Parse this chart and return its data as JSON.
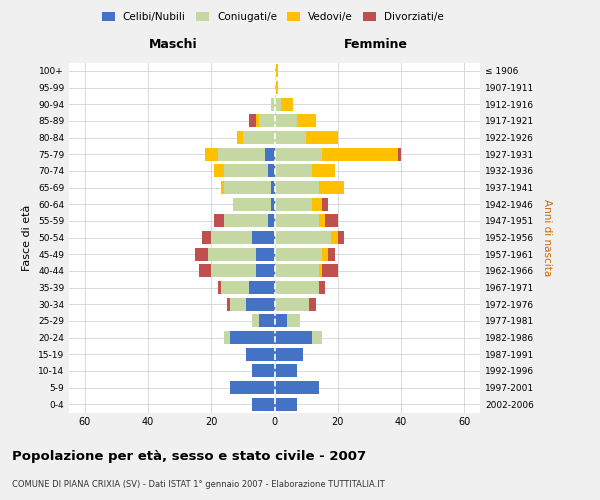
{
  "age_groups": [
    "0-4",
    "5-9",
    "10-14",
    "15-19",
    "20-24",
    "25-29",
    "30-34",
    "35-39",
    "40-44",
    "45-49",
    "50-54",
    "55-59",
    "60-64",
    "65-69",
    "70-74",
    "75-79",
    "80-84",
    "85-89",
    "90-94",
    "95-99",
    "100+"
  ],
  "birth_years": [
    "2002-2006",
    "1997-2001",
    "1992-1996",
    "1987-1991",
    "1982-1986",
    "1977-1981",
    "1972-1976",
    "1967-1971",
    "1962-1966",
    "1957-1961",
    "1952-1956",
    "1947-1951",
    "1942-1946",
    "1937-1941",
    "1932-1936",
    "1927-1931",
    "1922-1926",
    "1917-1921",
    "1912-1916",
    "1907-1911",
    "≤ 1906"
  ],
  "male": {
    "celibi": [
      7,
      14,
      7,
      9,
      14,
      5,
      9,
      8,
      6,
      6,
      7,
      2,
      1,
      1,
      2,
      3,
      0,
      0,
      0,
      0,
      0
    ],
    "coniugati": [
      0,
      0,
      0,
      0,
      2,
      2,
      5,
      9,
      14,
      15,
      13,
      14,
      12,
      15,
      14,
      15,
      10,
      5,
      1,
      0,
      0
    ],
    "vedovi": [
      0,
      0,
      0,
      0,
      0,
      0,
      0,
      0,
      0,
      0,
      0,
      0,
      0,
      1,
      3,
      4,
      2,
      1,
      0,
      0,
      0
    ],
    "divorziati": [
      0,
      0,
      0,
      0,
      0,
      0,
      1,
      1,
      4,
      4,
      3,
      3,
      0,
      0,
      0,
      0,
      0,
      2,
      0,
      0,
      0
    ]
  },
  "female": {
    "nubili": [
      7,
      14,
      7,
      9,
      12,
      4,
      0,
      0,
      0,
      0,
      0,
      0,
      0,
      0,
      0,
      0,
      0,
      0,
      0,
      0,
      0
    ],
    "coniugate": [
      0,
      0,
      0,
      0,
      3,
      4,
      11,
      14,
      14,
      15,
      18,
      14,
      12,
      14,
      12,
      15,
      10,
      7,
      2,
      0,
      0
    ],
    "vedove": [
      0,
      0,
      0,
      0,
      0,
      0,
      0,
      0,
      1,
      2,
      2,
      2,
      3,
      8,
      7,
      24,
      10,
      6,
      4,
      1,
      1
    ],
    "divorziate": [
      0,
      0,
      0,
      0,
      0,
      0,
      2,
      2,
      5,
      2,
      2,
      4,
      2,
      0,
      0,
      1,
      0,
      0,
      0,
      0,
      0
    ]
  },
  "colors": {
    "celibi": "#4472c4",
    "coniugati": "#c5d8a4",
    "vedovi": "#ffc000",
    "divorziati": "#c0504d"
  },
  "xlim": 65,
  "title": "Popolazione per età, sesso e stato civile - 2007",
  "subtitle": "COMUNE DI PIANA CRIXIA (SV) - Dati ISTAT 1° gennaio 2007 - Elaborazione TUTTITALIA.IT",
  "xlabel_left": "Maschi",
  "xlabel_right": "Femmine",
  "ylabel_left": "Fasce di età",
  "ylabel_right": "Anni di nascita",
  "bg_color": "#f0f0f0",
  "plot_bg": "#ffffff",
  "grid_color": "#cccccc"
}
